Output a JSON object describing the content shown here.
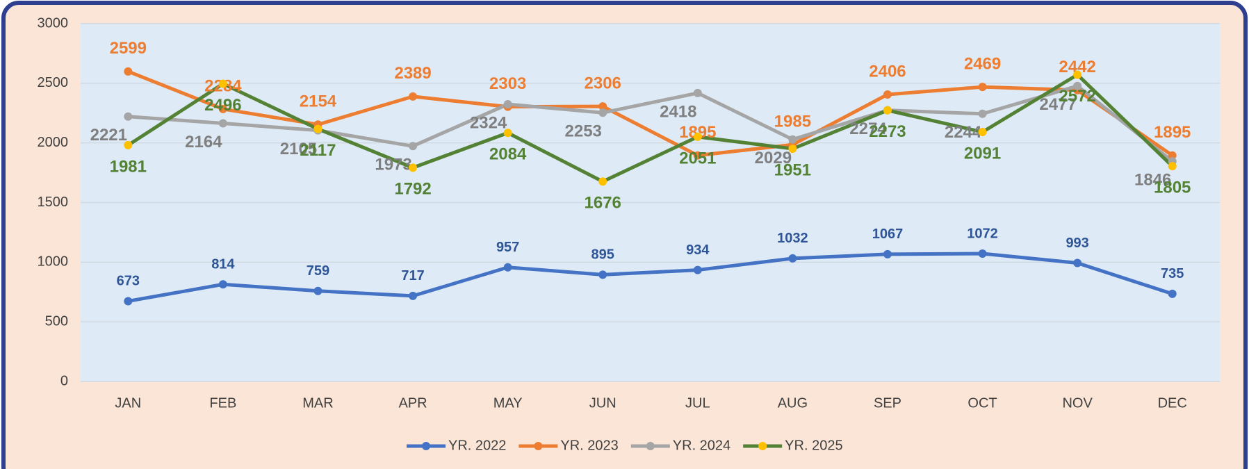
{
  "chart_data": {
    "type": "line",
    "categories": [
      "JAN",
      "FEB",
      "MAR",
      "APR",
      "MAY",
      "JUN",
      "JUL",
      "AUG",
      "SEP",
      "OCT",
      "NOV",
      "DEC"
    ],
    "series": [
      {
        "name": "YR. 2022",
        "color": "#4472c4",
        "marker_color": "#4472c4",
        "label_color": "#2f5597",
        "values": [
          673,
          814,
          759,
          717,
          957,
          895,
          934,
          1032,
          1067,
          1072,
          993,
          735
        ]
      },
      {
        "name": "YR. 2023",
        "color": "#ed7d31",
        "marker_color": "#ed7d31",
        "label_color": "#ed7d31",
        "values": [
          2599,
          2284,
          2154,
          2389,
          2303,
          2306,
          1895,
          1985,
          2406,
          2469,
          2442,
          1895
        ]
      },
      {
        "name": "YR. 2024",
        "color": "#a5a5a5",
        "marker_color": "#a5a5a5",
        "label_color": "#7f7f7f",
        "values": [
          2221,
          2164,
          2105,
          1973,
          2324,
          2253,
          2418,
          2029,
          2274,
          2244,
          2477,
          1846
        ]
      },
      {
        "name": "YR. 2025",
        "color": "#548235",
        "marker_color": "#ffc000",
        "label_color": "#548235",
        "values": [
          1981,
          2496,
          2117,
          1792,
          2084,
          1676,
          2051,
          1951,
          2273,
          2091,
          2572,
          1805
        ]
      }
    ],
    "ylim": [
      0,
      3000
    ],
    "yticks": [
      0,
      500,
      1000,
      1500,
      2000,
      2500,
      3000
    ],
    "grid": true,
    "legend": "bottom"
  }
}
